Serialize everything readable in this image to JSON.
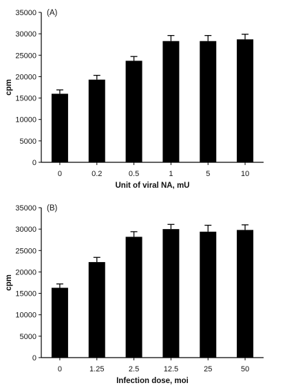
{
  "chart_data": [
    {
      "type": "bar",
      "panel_label": "(A)",
      "categories": [
        "0",
        "0.2",
        "0.5",
        "1",
        "5",
        "10"
      ],
      "values": [
        16000,
        19300,
        23700,
        28300,
        28300,
        28700
      ],
      "errors": [
        900,
        1000,
        1000,
        1300,
        1300,
        1200
      ],
      "xlabel": "Unit of viral NA, mU",
      "ylabel": "cpm",
      "ylim": [
        0,
        35000
      ],
      "yticks": [
        "0",
        "5000",
        "10000",
        "15000",
        "20000",
        "25000",
        "30000",
        "35000"
      ],
      "grid": false,
      "bar_color": "#000000"
    },
    {
      "type": "bar",
      "panel_label": "(B)",
      "categories": [
        "0",
        "1.25",
        "2.5",
        "12.5",
        "25",
        "50"
      ],
      "values": [
        16300,
        22300,
        28200,
        30000,
        29400,
        29800
      ],
      "errors": [
        900,
        1100,
        1200,
        1100,
        1500,
        1200
      ],
      "xlabel": "Infection dose, moi",
      "ylabel": "cpm",
      "ylim": [
        0,
        35000
      ],
      "yticks": [
        "0",
        "5000",
        "10000",
        "15000",
        "20000",
        "25000",
        "30000",
        "35000"
      ],
      "grid": false,
      "bar_color": "#000000"
    }
  ]
}
